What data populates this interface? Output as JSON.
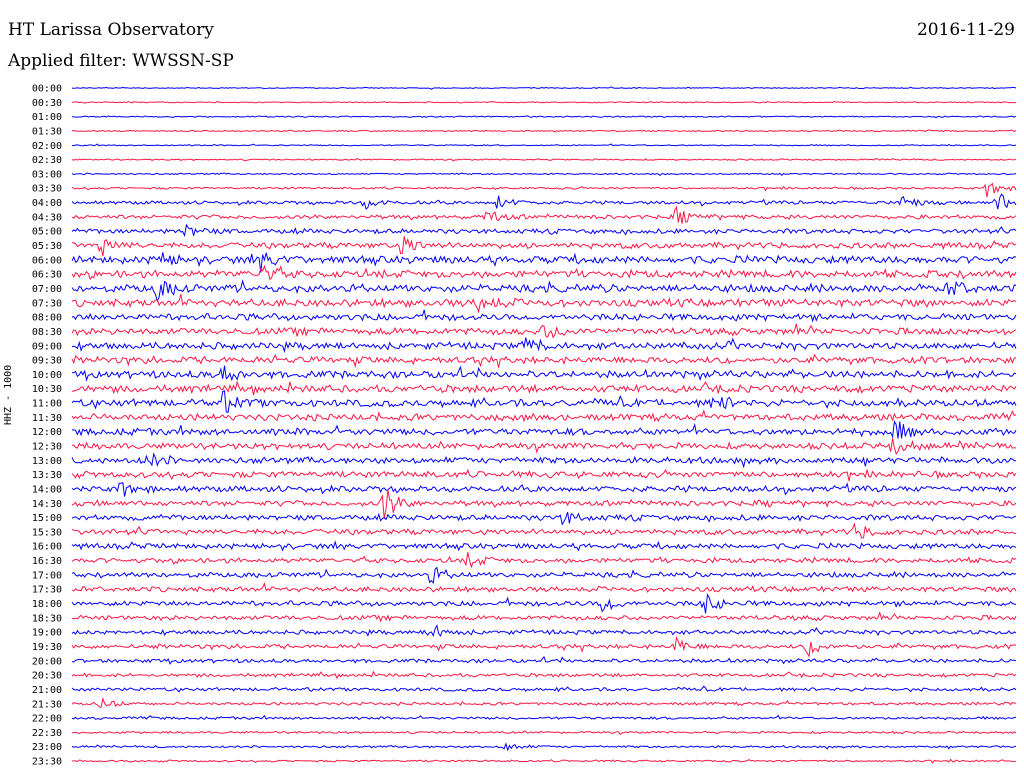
{
  "header": {
    "station": "HT Larissa Observatory",
    "date": "2016-11-29",
    "filter": "Applied filter: WWSSN-SP"
  },
  "colors": {
    "even_row": "#0000ff",
    "odd_row": "#ff1744"
  },
  "chart_data": {
    "type": "line",
    "title": "HT Larissa Observatory",
    "ylabel": "HHZ - 1000",
    "rows": [
      "00:00",
      "00:30",
      "01:00",
      "01:30",
      "02:00",
      "02:30",
      "03:00",
      "03:30",
      "04:00",
      "04:30",
      "05:00",
      "05:30",
      "06:00",
      "06:30",
      "07:00",
      "07:30",
      "08:00",
      "08:30",
      "09:00",
      "09:30",
      "10:00",
      "10:30",
      "11:00",
      "11:30",
      "12:00",
      "12:30",
      "13:00",
      "13:30",
      "14:00",
      "14:30",
      "15:00",
      "15:30",
      "16:00",
      "16:30",
      "17:00",
      "17:30",
      "18:00",
      "18:30",
      "19:00",
      "19:30",
      "20:00",
      "20:30",
      "21:00",
      "21:30",
      "22:00",
      "22:30",
      "23:00",
      "23:30"
    ],
    "noise_level": [
      0.5,
      0.5,
      0.6,
      0.6,
      0.6,
      0.7,
      0.7,
      1.0,
      1.6,
      2.0,
      2.2,
      2.8,
      3.6,
      3.6,
      3.6,
      3.6,
      3.2,
      3.2,
      3.2,
      3.2,
      3.4,
      3.4,
      3.4,
      3.2,
      3.2,
      3.0,
      3.0,
      3.0,
      2.8,
      2.6,
      2.6,
      2.6,
      2.6,
      2.4,
      2.4,
      2.4,
      2.4,
      2.2,
      2.0,
      2.0,
      1.8,
      1.6,
      1.6,
      1.4,
      1.2,
      1.0,
      1.0,
      0.9
    ],
    "events": [
      {
        "row": 7,
        "t": 0.97,
        "amp": 10
      },
      {
        "row": 8,
        "t": 0.31,
        "amp": 6
      },
      {
        "row": 8,
        "t": 0.45,
        "amp": 8
      },
      {
        "row": 8,
        "t": 0.88,
        "amp": 7
      },
      {
        "row": 8,
        "t": 0.98,
        "amp": 11
      },
      {
        "row": 9,
        "t": 0.44,
        "amp": 8
      },
      {
        "row": 9,
        "t": 0.64,
        "amp": 8
      },
      {
        "row": 10,
        "t": 0.12,
        "amp": 7
      },
      {
        "row": 11,
        "t": 0.03,
        "amp": 10
      },
      {
        "row": 11,
        "t": 0.35,
        "amp": 10
      },
      {
        "row": 12,
        "t": 0.09,
        "amp": 8
      },
      {
        "row": 12,
        "t": 0.2,
        "amp": 9
      },
      {
        "row": 13,
        "t": 0.2,
        "amp": 9
      },
      {
        "row": 14,
        "t": 0.09,
        "amp": 10
      },
      {
        "row": 14,
        "t": 0.93,
        "amp": 9
      },
      {
        "row": 15,
        "t": 0.43,
        "amp": 9
      },
      {
        "row": 17,
        "t": 0.5,
        "amp": 8
      },
      {
        "row": 18,
        "t": 0.48,
        "amp": 9
      },
      {
        "row": 20,
        "t": 0.16,
        "amp": 8
      },
      {
        "row": 22,
        "t": 0.16,
        "amp": 10
      },
      {
        "row": 22,
        "t": 0.68,
        "amp": 9
      },
      {
        "row": 24,
        "t": 0.87,
        "amp": 12
      },
      {
        "row": 25,
        "t": 0.87,
        "amp": 10
      },
      {
        "row": 26,
        "t": 0.08,
        "amp": 8
      },
      {
        "row": 28,
        "t": 0.05,
        "amp": 8
      },
      {
        "row": 29,
        "t": 0.33,
        "amp": 18
      },
      {
        "row": 30,
        "t": 0.52,
        "amp": 7
      },
      {
        "row": 31,
        "t": 0.83,
        "amp": 9
      },
      {
        "row": 33,
        "t": 0.42,
        "amp": 7
      },
      {
        "row": 34,
        "t": 0.38,
        "amp": 8
      },
      {
        "row": 36,
        "t": 0.56,
        "amp": 10
      },
      {
        "row": 36,
        "t": 0.67,
        "amp": 10
      },
      {
        "row": 38,
        "t": 0.38,
        "amp": 9
      },
      {
        "row": 39,
        "t": 0.64,
        "amp": 8
      },
      {
        "row": 39,
        "t": 0.78,
        "amp": 10
      },
      {
        "row": 43,
        "t": 0.03,
        "amp": 6
      },
      {
        "row": 46,
        "t": 0.46,
        "amp": 5
      }
    ]
  }
}
